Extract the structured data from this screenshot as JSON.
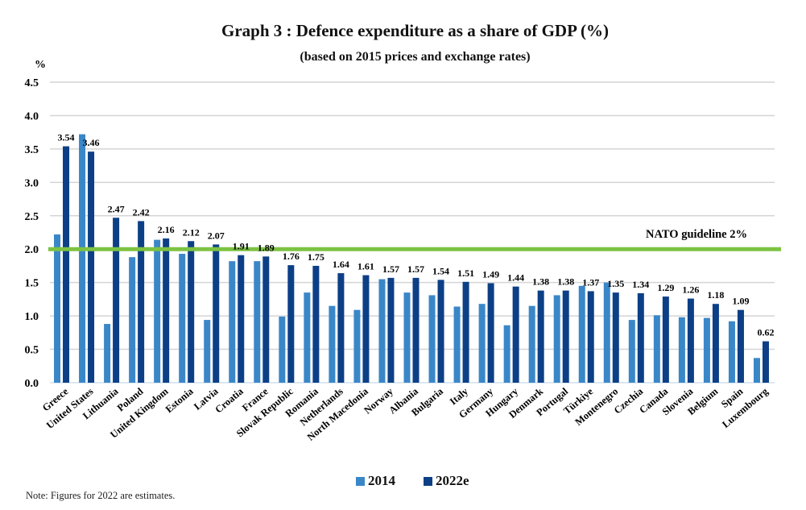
{
  "chart_data": {
    "type": "bar",
    "title": "Graph 3 : Defence expenditure as a share of GDP (%)",
    "subtitle": "(based on 2015 prices and exchange rates)",
    "ylabel": "%",
    "xlabel": "",
    "ylim": [
      0,
      4.5
    ],
    "yticks": [
      "0.0",
      "0.5",
      "1.0",
      "1.5",
      "2.0",
      "2.5",
      "3.0",
      "3.5",
      "4.0",
      "4.5"
    ],
    "grid": true,
    "legend_position": "bottom-center",
    "categories": [
      "Greece",
      "United States",
      "Lithuania",
      "Poland",
      "United Kingdom",
      "Estonia",
      "Latvia",
      "Croatia",
      "France",
      "Slovak Republic",
      "Romania",
      "Netherlands",
      "North Macedonia",
      "Norway",
      "Albania",
      "Bulgaria",
      "Italy",
      "Germany",
      "Hungary",
      "Denmark",
      "Portugal",
      "Türkiye",
      "Montenegro",
      "Czechia",
      "Canada",
      "Slovenia",
      "Belgium",
      "Spain",
      "Luxembourg"
    ],
    "series": [
      {
        "name": "2014",
        "color": "#3a87c8",
        "values": [
          2.22,
          3.72,
          0.88,
          1.88,
          2.14,
          1.93,
          0.94,
          1.82,
          1.82,
          0.99,
          1.35,
          1.15,
          1.09,
          1.55,
          1.35,
          1.31,
          1.14,
          1.18,
          0.86,
          1.15,
          1.31,
          1.45,
          1.5,
          0.94,
          1.01,
          0.98,
          0.97,
          0.92,
          0.37
        ]
      },
      {
        "name": "2022e",
        "color": "#0c3f86",
        "values": [
          3.54,
          3.46,
          2.47,
          2.42,
          2.16,
          2.12,
          2.07,
          1.91,
          1.89,
          1.76,
          1.75,
          1.64,
          1.61,
          1.57,
          1.57,
          1.54,
          1.51,
          1.49,
          1.44,
          1.38,
          1.38,
          1.37,
          1.35,
          1.34,
          1.29,
          1.26,
          1.18,
          1.09,
          0.62
        ]
      }
    ],
    "data_labels": [
      "3.54",
      "3.46",
      "2.47",
      "2.42",
      "2.16",
      "2.12",
      "2.07",
      "1.91",
      "1.89",
      "1.76",
      "1.75",
      "1.64",
      "1.61",
      "1.57",
      "1.57",
      "1.54",
      "1.51",
      "1.49",
      "1.44",
      "1.38",
      "1.38",
      "1.37",
      "1.35",
      "1.34",
      "1.29",
      "1.26",
      "1.18",
      "1.09",
      "0.62"
    ],
    "reference_line": {
      "value": 2.0,
      "label": "NATO guideline 2%",
      "color": "#7dc242"
    },
    "note": "Note: Figures for 2022 are estimates."
  }
}
